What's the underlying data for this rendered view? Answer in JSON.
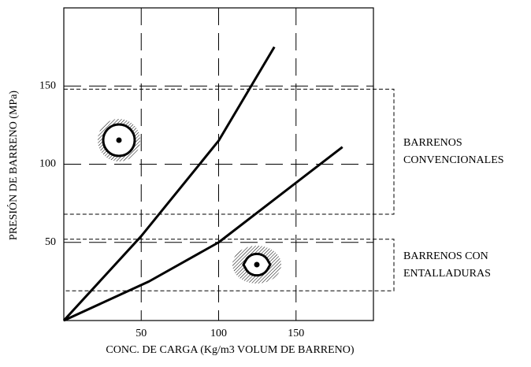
{
  "chart_data": {
    "type": "line",
    "x_label": "CONC. DE CARGA (Kg/m3 VOLUM DE BARRENO)",
    "y_label": "PRESIÓN DE BARRENO (MPa)",
    "xlim": [
      0,
      200
    ],
    "ylim": [
      0,
      200
    ],
    "xticks": [
      50,
      100,
      150
    ],
    "yticks": [
      50,
      100,
      150
    ],
    "grid": true,
    "series": [
      {
        "color": "#000000",
        "x": [
          0,
          50,
          100,
          136
        ],
        "values": [
          0,
          54,
          115,
          175
        ]
      },
      {
        "color": "#000000",
        "x": [
          0,
          55,
          100,
          180
        ],
        "values": [
          0,
          25,
          50,
          111
        ]
      }
    ],
    "bands": [
      {
        "label": [
          "BARRENOS",
          "CONVENCIONALES"
        ],
        "range": [
          68,
          148
        ]
      },
      {
        "label": [
          "BARRENOS CON",
          "ENTALLADURAS"
        ],
        "range": [
          19,
          52
        ]
      }
    ]
  }
}
